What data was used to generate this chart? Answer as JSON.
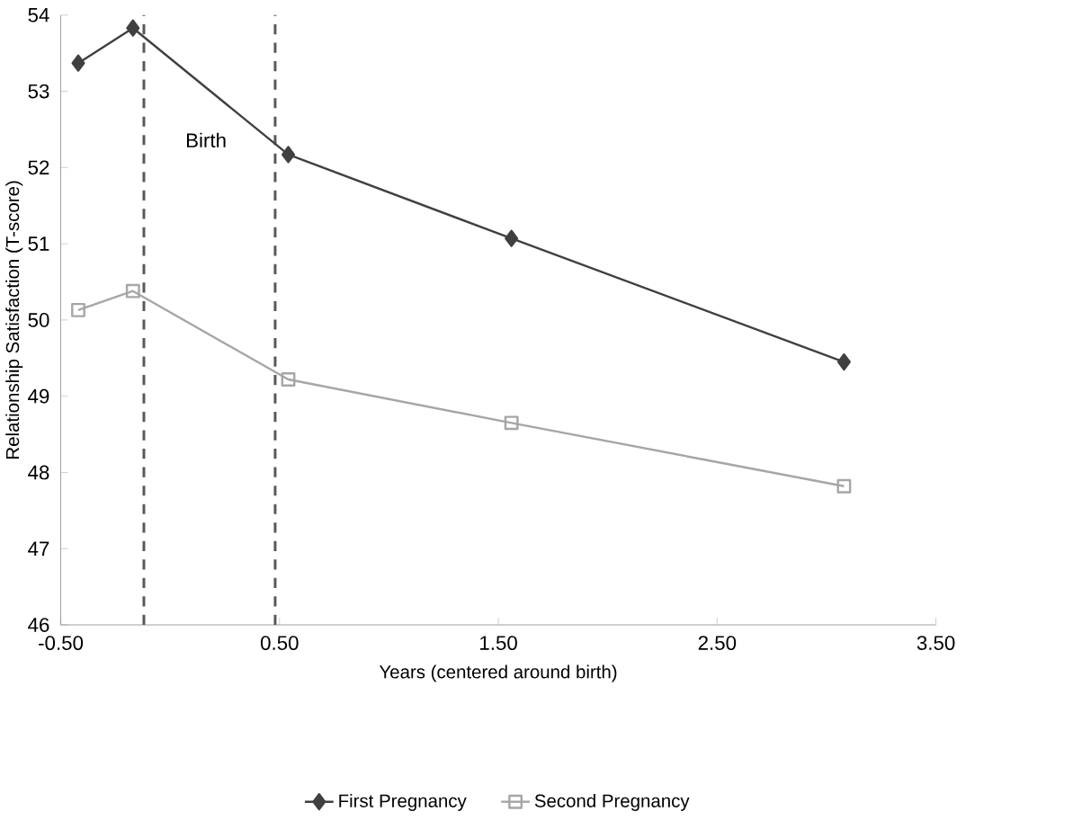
{
  "chart_data": {
    "type": "line",
    "xlabel": "Years (centered around birth)",
    "ylabel": "Relationship Satisfaction (T-score)",
    "x": [
      -0.42,
      -0.17,
      0.54,
      1.56,
      3.08
    ],
    "series": [
      {
        "name": "First Pregnancy",
        "color": "#404040",
        "marker": "diamond",
        "values": [
          53.37,
          53.83,
          52.17,
          51.07,
          49.45
        ]
      },
      {
        "name": "Second Pregnancy",
        "color": "#a6a6a6",
        "marker": "square",
        "values": [
          50.13,
          50.38,
          49.22,
          48.65,
          47.82
        ]
      }
    ],
    "xlim": [
      -0.5,
      3.5
    ],
    "ylim": [
      46,
      54
    ],
    "xticks": [
      {
        "value": -0.5,
        "label": "-0.50"
      },
      {
        "value": 0.5,
        "label": "0.50"
      },
      {
        "value": 1.5,
        "label": "1.50"
      },
      {
        "value": 2.5,
        "label": "2.50"
      },
      {
        "value": 3.5,
        "label": "3.50"
      }
    ],
    "yticks": [
      46,
      47,
      48,
      49,
      50,
      51,
      52,
      53,
      54
    ],
    "ref_lines": [
      {
        "axis": "x",
        "value": -0.12,
        "color": "#595959",
        "line_style": "dashed"
      },
      {
        "axis": "x",
        "value": 0.48,
        "color": "#595959",
        "line_style": "dashed"
      }
    ],
    "annotations": [
      "Birth"
    ],
    "grid": false,
    "legend": "bottom",
    "line_style": "solid"
  }
}
